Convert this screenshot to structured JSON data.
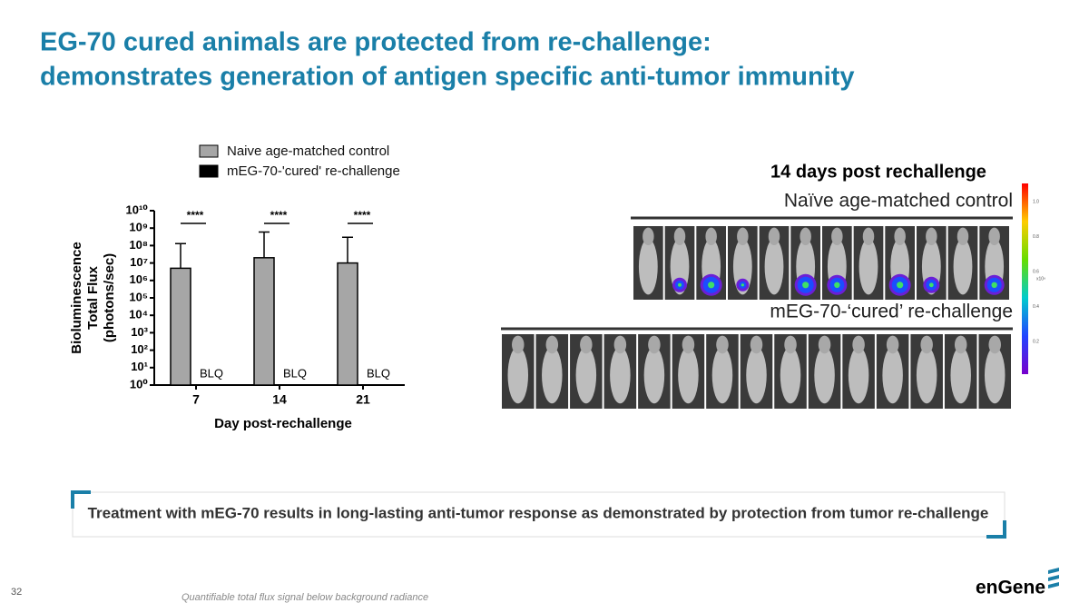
{
  "title": [
    "EG-70 cured animals are protected from re-challenge:",
    "demonstrates generation of antigen specific anti-tumor immunity"
  ],
  "chart_data": {
    "type": "bar",
    "categories": [
      "7",
      "14",
      "21"
    ],
    "x_label": "Day post-rechallenge",
    "y_label": [
      "Bioluminescence",
      "Total Flux",
      "(photons/sec)"
    ],
    "log_y": true,
    "ylim": [
      1,
      10000000000
    ],
    "yticks": [
      {
        "value": 1,
        "label": "10⁰"
      },
      {
        "value": 10,
        "label": "10¹"
      },
      {
        "value": 100,
        "label": "10²"
      },
      {
        "value": 1000,
        "label": "10³"
      },
      {
        "value": 10000,
        "label": "10⁴"
      },
      {
        "value": 100000,
        "label": "10⁵"
      },
      {
        "value": 1000000,
        "label": "10⁶"
      },
      {
        "value": 10000000,
        "label": "10⁷"
      },
      {
        "value": 100000000,
        "label": "10⁸"
      },
      {
        "value": 1000000000,
        "label": "10⁹"
      },
      {
        "value": 10000000000,
        "label": "10¹⁰"
      }
    ],
    "series": [
      {
        "name": "Naive age-matched control",
        "color": "#a6a6a6",
        "values": [
          5000000,
          20000000,
          10000000
        ],
        "errors": [
          125000000,
          580000000,
          290000000
        ]
      },
      {
        "name": "mEG-70-'cured' re-challenge",
        "color": "#000000",
        "values": [
          null,
          null,
          null
        ],
        "value_labels": [
          "BLQ",
          "BLQ",
          "BLQ"
        ]
      }
    ],
    "annotations": [
      "****",
      "****",
      "****"
    ]
  },
  "imaging": {
    "title": "14 days post rechallenge",
    "top_label": "Naïve age-matched control",
    "bottom_label": "mEG-70-‘cured’ re-challenge",
    "colorbar_ticks": [
      "1.0",
      "0.8",
      "0.6",
      "0.4",
      "0.2"
    ],
    "colorbar_unit": "x10⁹"
  },
  "callout": "Treatment with mEG-70 results in long-lasting anti-tumor response as demonstrated by protection from tumor re-challenge",
  "page_number": "32",
  "footnote": "Quantifiable total flux signal below background radiance",
  "logo": "enGene"
}
